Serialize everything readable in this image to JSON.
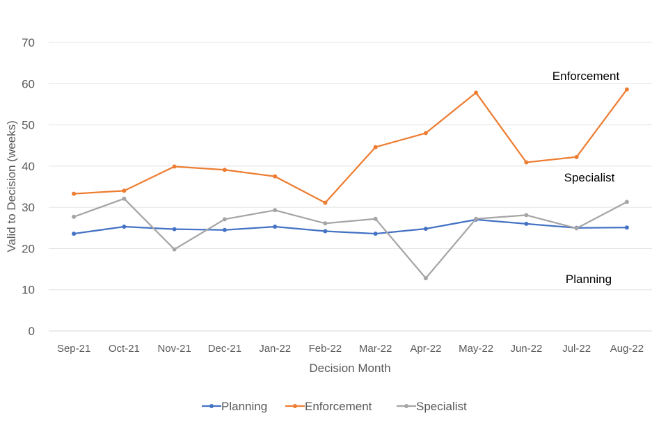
{
  "chart_data": {
    "type": "line",
    "title": "",
    "xlabel": "Decision Month",
    "ylabel": "Valid to Decision (weeks)",
    "ylim": [
      0,
      70
    ],
    "yticks": [
      0,
      10,
      20,
      30,
      40,
      50,
      60,
      70
    ],
    "grid": true,
    "legend_position": "bottom",
    "categories": [
      "Sep-21",
      "Oct-21",
      "Nov-21",
      "Dec-21",
      "Jan-22",
      "Feb-22",
      "Mar-22",
      "Apr-22",
      "May-22",
      "Jun-22",
      "Jul-22",
      "Aug-22"
    ],
    "series": [
      {
        "name": "Planning",
        "color": "#4472C4",
        "values": [
          23.6,
          25.3,
          24.7,
          24.5,
          25.3,
          24.2,
          23.6,
          24.8,
          27.0,
          26.0,
          25.0,
          25.1
        ]
      },
      {
        "name": "Enforcement",
        "color": "#ED7D31",
        "values": [
          33.3,
          34.0,
          39.9,
          39.1,
          37.5,
          31.1,
          44.6,
          48.0,
          57.8,
          40.9,
          42.2,
          58.6
        ]
      },
      {
        "name": "Specialist",
        "color": "#A5A5A5",
        "values": [
          27.7,
          32.1,
          19.8,
          27.1,
          29.3,
          26.1,
          27.2,
          12.8,
          27.2,
          28.1,
          24.9,
          31.3
        ]
      }
    ],
    "annotations": [
      "Enforcement",
      "Specialist",
      "Planning"
    ],
    "legend": [
      "Planning",
      "Enforcement",
      "Specialist"
    ]
  }
}
